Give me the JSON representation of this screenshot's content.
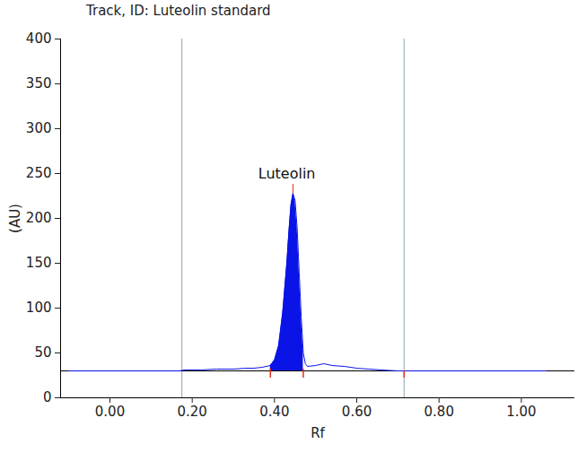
{
  "chart_data": {
    "type": "line",
    "title": "Track, ID: Luteolin standard",
    "x_label": "Rf",
    "y_label": "(AU)",
    "x": [
      -0.1,
      0.17,
      0.18,
      0.22,
      0.26,
      0.3,
      0.33,
      0.35,
      0.37,
      0.39,
      0.4,
      0.41,
      0.42,
      0.43,
      0.435,
      0.44,
      0.445,
      0.45,
      0.455,
      0.46,
      0.465,
      0.47,
      0.475,
      0.48,
      0.5,
      0.52,
      0.54,
      0.57,
      0.6,
      0.63,
      0.66,
      0.7,
      0.72,
      1.06
    ],
    "values": [
      30,
      30,
      31,
      31,
      32,
      32,
      33,
      33,
      34,
      36,
      42,
      58,
      95,
      150,
      185,
      215,
      228,
      220,
      190,
      140,
      90,
      50,
      38,
      35,
      36,
      38,
      36,
      35,
      33,
      32,
      31,
      30,
      30,
      30
    ],
    "color": "#0a14e6",
    "xlim": [
      -0.12,
      1.13
    ],
    "ylim": [
      0,
      400
    ],
    "xticks": [
      {
        "value": 0,
        "label": "0.00"
      },
      {
        "value": 0.2,
        "label": "0.20"
      },
      {
        "value": 0.4,
        "label": "0.40"
      },
      {
        "value": 0.6,
        "label": "0.60"
      },
      {
        "value": 0.8,
        "label": "0.80"
      },
      {
        "value": 1.0,
        "label": "1.00"
      }
    ],
    "yticks": [
      0,
      50,
      100,
      150,
      200,
      250,
      300,
      350,
      400
    ],
    "grid": false,
    "baseline": 30,
    "window_limits": [
      0.175,
      0.715
    ],
    "peak_range": [
      0.39,
      0.47
    ],
    "annotations": [
      {
        "text": "Luteolin",
        "x": 0.43,
        "y": 250,
        "peak_x": 0.445,
        "peak_y": 228
      }
    ]
  }
}
